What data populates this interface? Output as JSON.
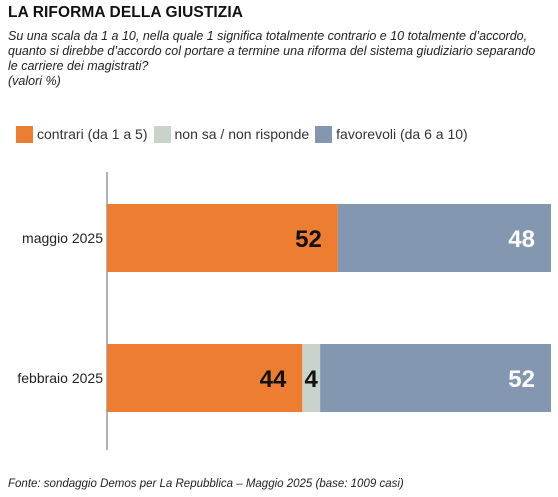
{
  "title": "LA RIFORMA DELLA GIUSTIZIA",
  "subtitle": "Su una scala da 1 a 10, nella quale 1 significa totalmente contrario e 10 totalmente d’accordo, quanto si direbbe d’accordo col portare a termine una riforma del sistema giudiziario separando le carriere dei magistrati?",
  "unit_note": "(valori %)",
  "source": "Fonte: sondaggio Demos per La Repubblica – Maggio 2025 (base: 1009 casi)",
  "chart_data": {
    "type": "bar",
    "orientation": "horizontal",
    "stacked": true,
    "categories": [
      "maggio 2025",
      "febbraio 2025"
    ],
    "series": [
      {
        "name": "contrari (da 1 a 5)",
        "values": [
          52,
          44
        ],
        "color": "#ED7D31",
        "label_color": "#111111"
      },
      {
        "name": "non sa / non risponde",
        "values": [
          0,
          4
        ],
        "color": "#C9D3CC",
        "label_color": "#111111"
      },
      {
        "name": "favorevoli (da 6 a 10)",
        "values": [
          48,
          52
        ],
        "color": "#8497B0",
        "label_color": "#ffffff"
      }
    ],
    "xlim": [
      0,
      100
    ],
    "legend_position": "top",
    "grid": false
  }
}
